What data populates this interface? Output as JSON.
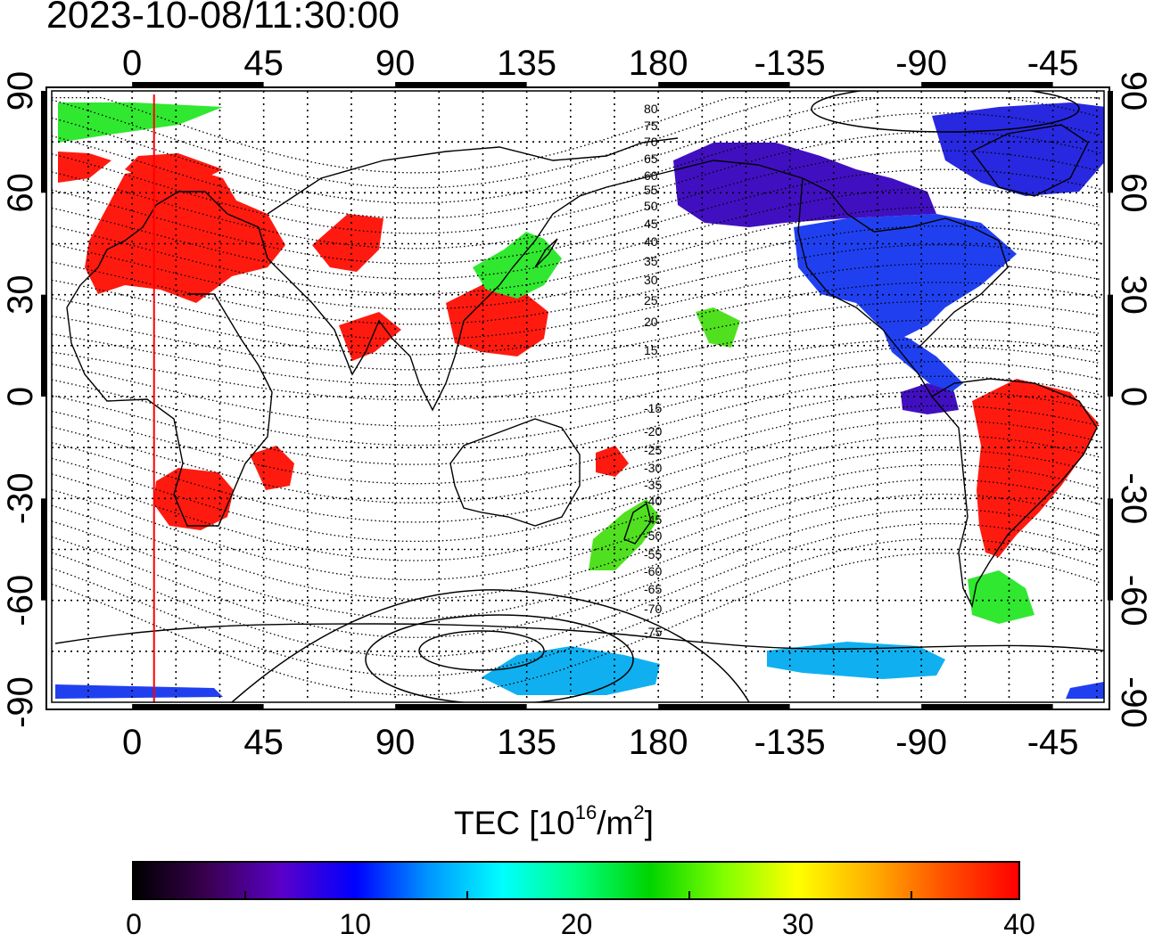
{
  "timestamp": "2023-10-08/11:30:00",
  "map": {
    "projection": "equirectangular",
    "lon_ticks_top": [
      "0",
      "45",
      "90",
      "135",
      "180",
      "-135",
      "-90",
      "-45"
    ],
    "lon_ticks_bottom": [
      "0",
      "45",
      "90",
      "135",
      "180",
      "-135",
      "-90",
      "-45"
    ],
    "lat_ticks_left": [
      "90",
      "60",
      "30",
      "0",
      "-30",
      "-60",
      "-90"
    ],
    "lat_ticks_right": [
      "90",
      "60",
      "30",
      "0",
      "-30",
      "-60",
      "-90"
    ],
    "grid": true,
    "terminator_longitude": 7.5,
    "terminator_color": "#ff0000",
    "contour_labels_north": [
      "80",
      "75",
      "70",
      "65",
      "60",
      "55",
      "50",
      "45",
      "40",
      "35",
      "30",
      "25",
      "20",
      "15"
    ],
    "contour_labels_south": [
      "-15",
      "-20",
      "-25",
      "-30",
      "-35",
      "-40",
      "-45",
      "-50",
      "-55",
      "-60",
      "-65",
      "-70",
      "-75"
    ]
  },
  "colorbar": {
    "title": "TEC  [10",
    "title_exp1": "16",
    "title_mid": "/m",
    "title_exp2": "2",
    "title_end": "]",
    "labels": [
      "0",
      "10",
      "20",
      "30",
      "40"
    ],
    "range": [
      0,
      40
    ],
    "colormap": [
      "#000000",
      "#3a0050",
      "#5a00c8",
      "#0000ff",
      "#0096ff",
      "#00ffff",
      "#00ff80",
      "#00d400",
      "#80ff00",
      "#ffff00",
      "#ffb000",
      "#ff5000",
      "#ff0000"
    ]
  },
  "tec_regions": [
    {
      "name": "europe",
      "value": 40,
      "color": "#ff1a10"
    },
    {
      "name": "central-asia",
      "value": 40,
      "color": "#ff1a10"
    },
    {
      "name": "east-asia",
      "value": 40,
      "color": "#ff1a10"
    },
    {
      "name": "japan",
      "value": 24,
      "color": "#30e830"
    },
    {
      "name": "africa-south",
      "value": 40,
      "color": "#ff1a10"
    },
    {
      "name": "north-america",
      "value": 12,
      "color": "#2040f0"
    },
    {
      "name": "canada-north",
      "value": 8,
      "color": "#4010c0"
    },
    {
      "name": "greenland",
      "value": 10,
      "color": "#2828e0"
    },
    {
      "name": "south-america",
      "value": 40,
      "color": "#ff1a10"
    },
    {
      "name": "new-zealand",
      "value": 25,
      "color": "#50e020"
    },
    {
      "name": "antarctica",
      "value": 18,
      "color": "#10b0f0"
    }
  ]
}
